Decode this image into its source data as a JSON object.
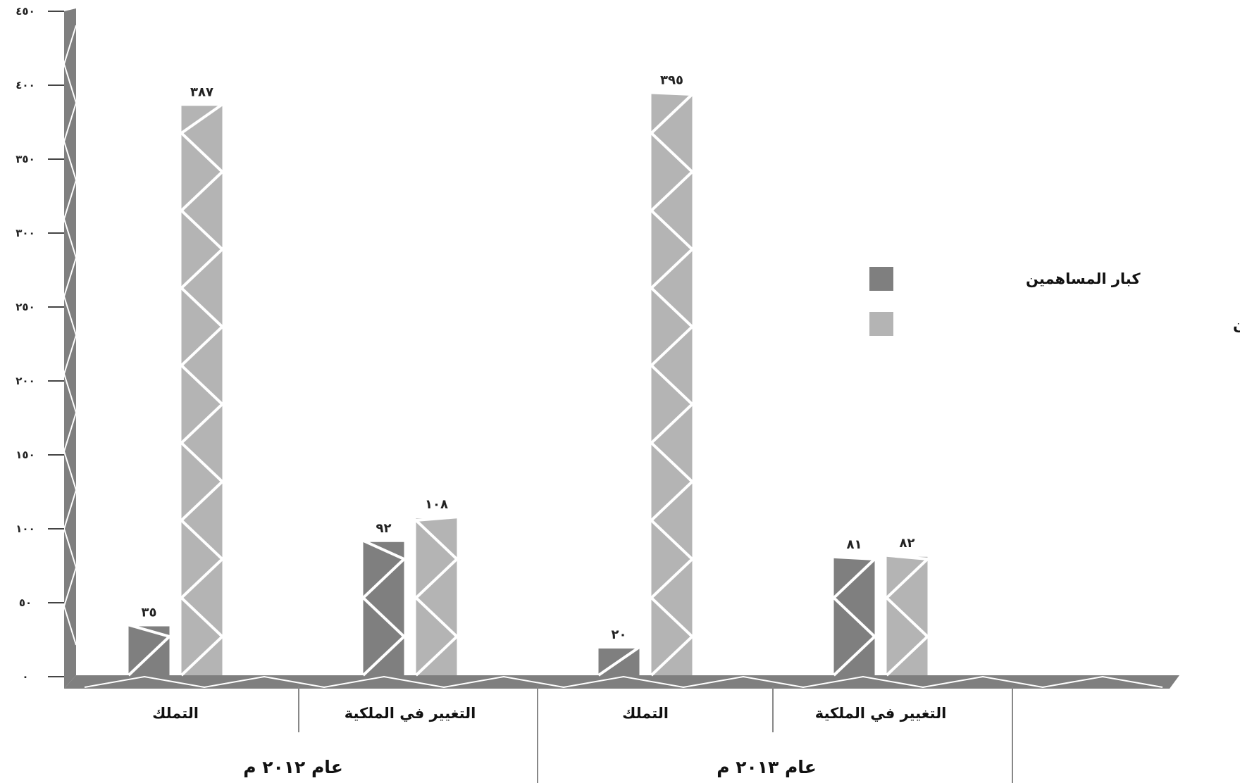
{
  "chart_data": {
    "type": "bar",
    "ylim": [
      0,
      450
    ],
    "y_ticks": [
      "٠",
      "٥٠",
      "١٠٠",
      "١٥٠",
      "٢٠٠",
      "٢٥٠",
      "٣٠٠",
      "٣٥٠",
      "٤٠٠",
      "٤٥٠"
    ],
    "y_tick_values": [
      0,
      50,
      100,
      150,
      200,
      250,
      300,
      350,
      400,
      450
    ],
    "groups": [
      "عام ٢٠١٢ م",
      "عام ٢٠١٣ م"
    ],
    "categories": [
      "التملك",
      "التغيير في الملكية",
      "التملك",
      "التغيير في الملكية"
    ],
    "series": [
      {
        "name": "كبار المساهمين",
        "color": "#7f7f7f",
        "values": [
          35,
          92,
          20,
          81
        ],
        "labels": [
          "٣٥",
          "٩٢",
          "٢٠",
          "٨١"
        ]
      },
      {
        "name": "أعضاء مجلس الإدارات وكبار التنفيذيين",
        "color": "#b4b4b4",
        "values": [
          387,
          108,
          395,
          82
        ],
        "labels": [
          "٣٨٧",
          "١٠٨",
          "٣٩٥",
          "٨٢"
        ]
      }
    ],
    "legend_position": "right",
    "grid": false,
    "title": "",
    "xlabel": "",
    "ylabel": ""
  },
  "style": {
    "axis_color": "#7f7f7f",
    "stripe_color": "#ffffff"
  }
}
